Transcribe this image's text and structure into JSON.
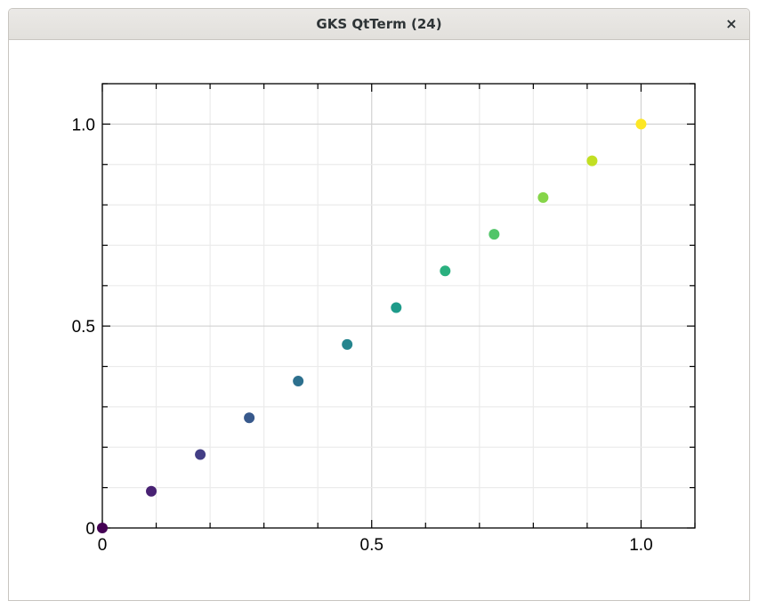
{
  "window": {
    "title": "GKS QtTerm (24)",
    "close_symbol": "×"
  },
  "chart_data": {
    "type": "scatter",
    "xlim": [
      0,
      1.1
    ],
    "ylim": [
      0,
      1.1
    ],
    "xticks": [
      {
        "value": 0,
        "label": "0"
      },
      {
        "value": 0.5,
        "label": "0.5"
      },
      {
        "value": 1.0,
        "label": "1.0"
      }
    ],
    "yticks": [
      {
        "value": 0,
        "label": "0"
      },
      {
        "value": 0.5,
        "label": "0.5"
      },
      {
        "value": 1.0,
        "label": "1.0"
      }
    ],
    "minor_tick_step": 0.1,
    "grid": true,
    "colormap": "viridis",
    "points": [
      {
        "x": 0.0,
        "y": 0.0,
        "color": "#440154"
      },
      {
        "x": 0.0909,
        "y": 0.0909,
        "color": "#482173"
      },
      {
        "x": 0.1818,
        "y": 0.1818,
        "color": "#433e85"
      },
      {
        "x": 0.2727,
        "y": 0.2727,
        "color": "#38598c"
      },
      {
        "x": 0.3636,
        "y": 0.3636,
        "color": "#2d708e"
      },
      {
        "x": 0.4545,
        "y": 0.4545,
        "color": "#25858e"
      },
      {
        "x": 0.5455,
        "y": 0.5455,
        "color": "#1e9b8a"
      },
      {
        "x": 0.6364,
        "y": 0.6364,
        "color": "#2ab07f"
      },
      {
        "x": 0.7273,
        "y": 0.7273,
        "color": "#52c569"
      },
      {
        "x": 0.8182,
        "y": 0.8182,
        "color": "#86d549"
      },
      {
        "x": 0.9091,
        "y": 0.9091,
        "color": "#c2df23"
      },
      {
        "x": 1.0,
        "y": 1.0,
        "color": "#fde725"
      }
    ]
  }
}
